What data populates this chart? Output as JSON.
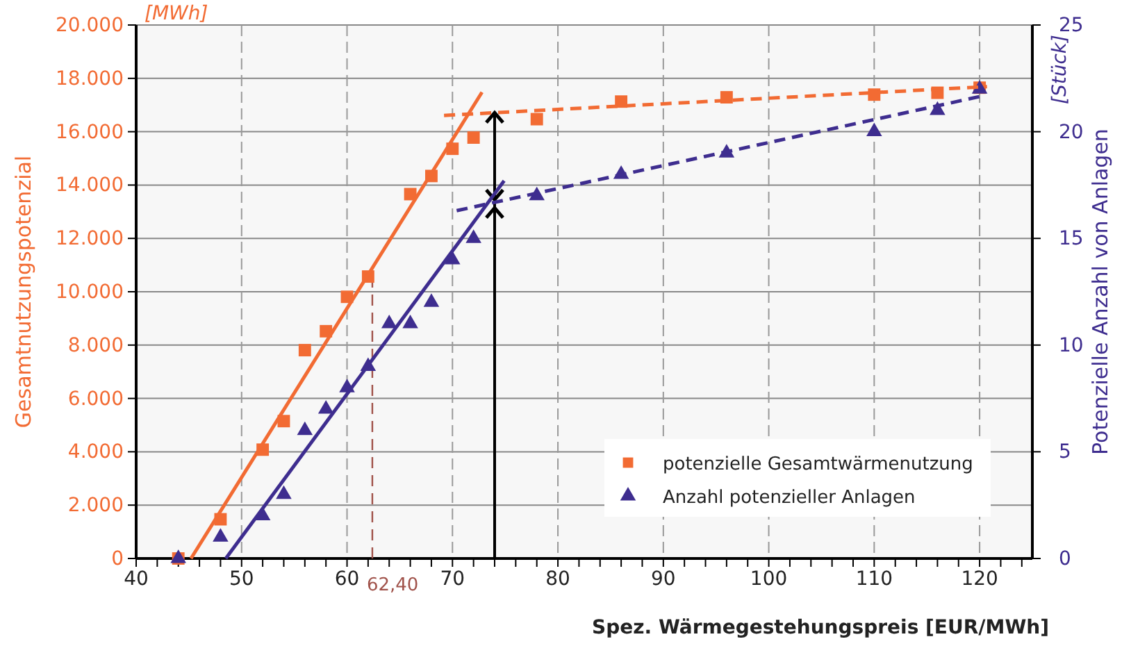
{
  "chart_data": {
    "type": "scatter",
    "xlabel": "Spez. Wärmegestehungspreis [EUR/MWh]",
    "ylabel": "Gesamtnutzungspotenzial",
    "y2label": "Potenzielle Anzahl von Anlagen",
    "annotations": [
      "[MWh]",
      "[Stück]"
    ],
    "xlim": [
      40,
      125
    ],
    "ylim": [
      0,
      20000
    ],
    "y2lim": [
      0,
      25
    ],
    "xticks": [
      40,
      {
        "value": 42,
        "label": null
      },
      {
        "value": 44,
        "label": null
      },
      {
        "value": 46,
        "label": null
      },
      {
        "value": 48,
        "label": null
      },
      50,
      {
        "value": 52,
        "label": null
      },
      {
        "value": 54,
        "label": null
      },
      {
        "value": 56,
        "label": null
      },
      {
        "value": 58,
        "label": null
      },
      60,
      {
        "value": 62,
        "label": null
      },
      {
        "value": 64,
        "label": null
      },
      {
        "value": 66,
        "label": null
      },
      {
        "value": 68,
        "label": null
      },
      70,
      {
        "value": 72,
        "label": null
      },
      {
        "value": 74,
        "label": null
      },
      {
        "value": 76,
        "label": null
      },
      {
        "value": 78,
        "label": null
      },
      80,
      {
        "value": 82,
        "label": null
      },
      {
        "value": 84,
        "label": null
      },
      {
        "value": 86,
        "label": null
      },
      {
        "value": 88,
        "label": null
      },
      90,
      {
        "value": 92,
        "label": null
      },
      {
        "value": 94,
        "label": null
      },
      {
        "value": 96,
        "label": null
      },
      {
        "value": 98,
        "label": null
      },
      100,
      {
        "value": 102,
        "label": null
      },
      {
        "value": 104,
        "label": null
      },
      {
        "value": 106,
        "label": null
      },
      {
        "value": 108,
        "label": null
      },
      110,
      {
        "value": 112,
        "label": null
      },
      {
        "value": 114,
        "label": null
      },
      {
        "value": 116,
        "label": null
      },
      {
        "value": 118,
        "label": null
      },
      120,
      {
        "value": 122,
        "label": null
      },
      {
        "value": 124,
        "label": null
      }
    ],
    "yticks": [
      {
        "value": 0,
        "label": "0"
      },
      {
        "value": 2000,
        "label": "2.000"
      },
      {
        "value": 4000,
        "label": "4.000"
      },
      {
        "value": 6000,
        "label": "6.000"
      },
      {
        "value": 8000,
        "label": "8.000"
      },
      {
        "value": 10000,
        "label": "10.000"
      },
      {
        "value": 12000,
        "label": "12.000"
      },
      {
        "value": 14000,
        "label": "14.000"
      },
      {
        "value": 16000,
        "label": "16.000"
      },
      {
        "value": 18000,
        "label": "18.000"
      },
      {
        "value": 20000,
        "label": "20.000"
      }
    ],
    "y2ticks": [
      0,
      5,
      10,
      15,
      20,
      25
    ],
    "grid": true,
    "legend": "bottom right",
    "ref_lines": [
      {
        "axis": "x",
        "value": 62.4,
        "label": "62,40",
        "color": "#a0524a",
        "line_style": "dashed"
      },
      {
        "axis": "x",
        "value": 74,
        "color": "#000000",
        "line_style": "solid"
      }
    ],
    "series": [
      {
        "name": "potenzielle Gesamtwärmenutzung",
        "color": "#f26b33",
        "marker": "square",
        "x": [
          44,
          48,
          52,
          54,
          56,
          58,
          60,
          62,
          66,
          68,
          70,
          72,
          78,
          86,
          96,
          110,
          116,
          120
        ],
        "values": [
          0,
          1470,
          4080,
          5150,
          7810,
          8520,
          9810,
          10570,
          13660,
          14340,
          15360,
          15780,
          16470,
          17130,
          17290,
          17390,
          17460,
          17650
        ]
      },
      {
        "name": "Anzahl potenzieller Anlagen",
        "color": "#3e2d8f",
        "marker": "triangle",
        "axis": "y2",
        "x": [
          44,
          48,
          52,
          54,
          56,
          58,
          60,
          62,
          64,
          66,
          68,
          70,
          72,
          78,
          86,
          96,
          110,
          116,
          120
        ],
        "values": [
          0,
          1,
          2,
          3,
          6,
          7,
          8,
          9,
          11,
          11,
          12,
          14,
          15,
          17,
          18,
          19,
          20,
          21,
          22
        ]
      },
      {
        "type": "line",
        "color": "#f26b33",
        "line_style": "solid",
        "x": [
          45.2,
          72.8
        ],
        "values": [
          0,
          17480
        ]
      },
      {
        "type": "line",
        "color": "#f26b33",
        "line_style": "dashed",
        "x": [
          69.2,
          120.7
        ],
        "values": [
          16610,
          17690
        ]
      },
      {
        "type": "line",
        "color": "#3e2d8f",
        "line_style": "solid",
        "axis": "y2",
        "x": [
          48.5,
          74.9
        ],
        "values": [
          0,
          17.7
        ]
      },
      {
        "type": "line",
        "color": "#3e2d8f",
        "line_style": "dashed",
        "axis": "y2",
        "x": [
          70.4,
          120.5
        ],
        "values": [
          16.3,
          21.7
        ]
      }
    ]
  }
}
